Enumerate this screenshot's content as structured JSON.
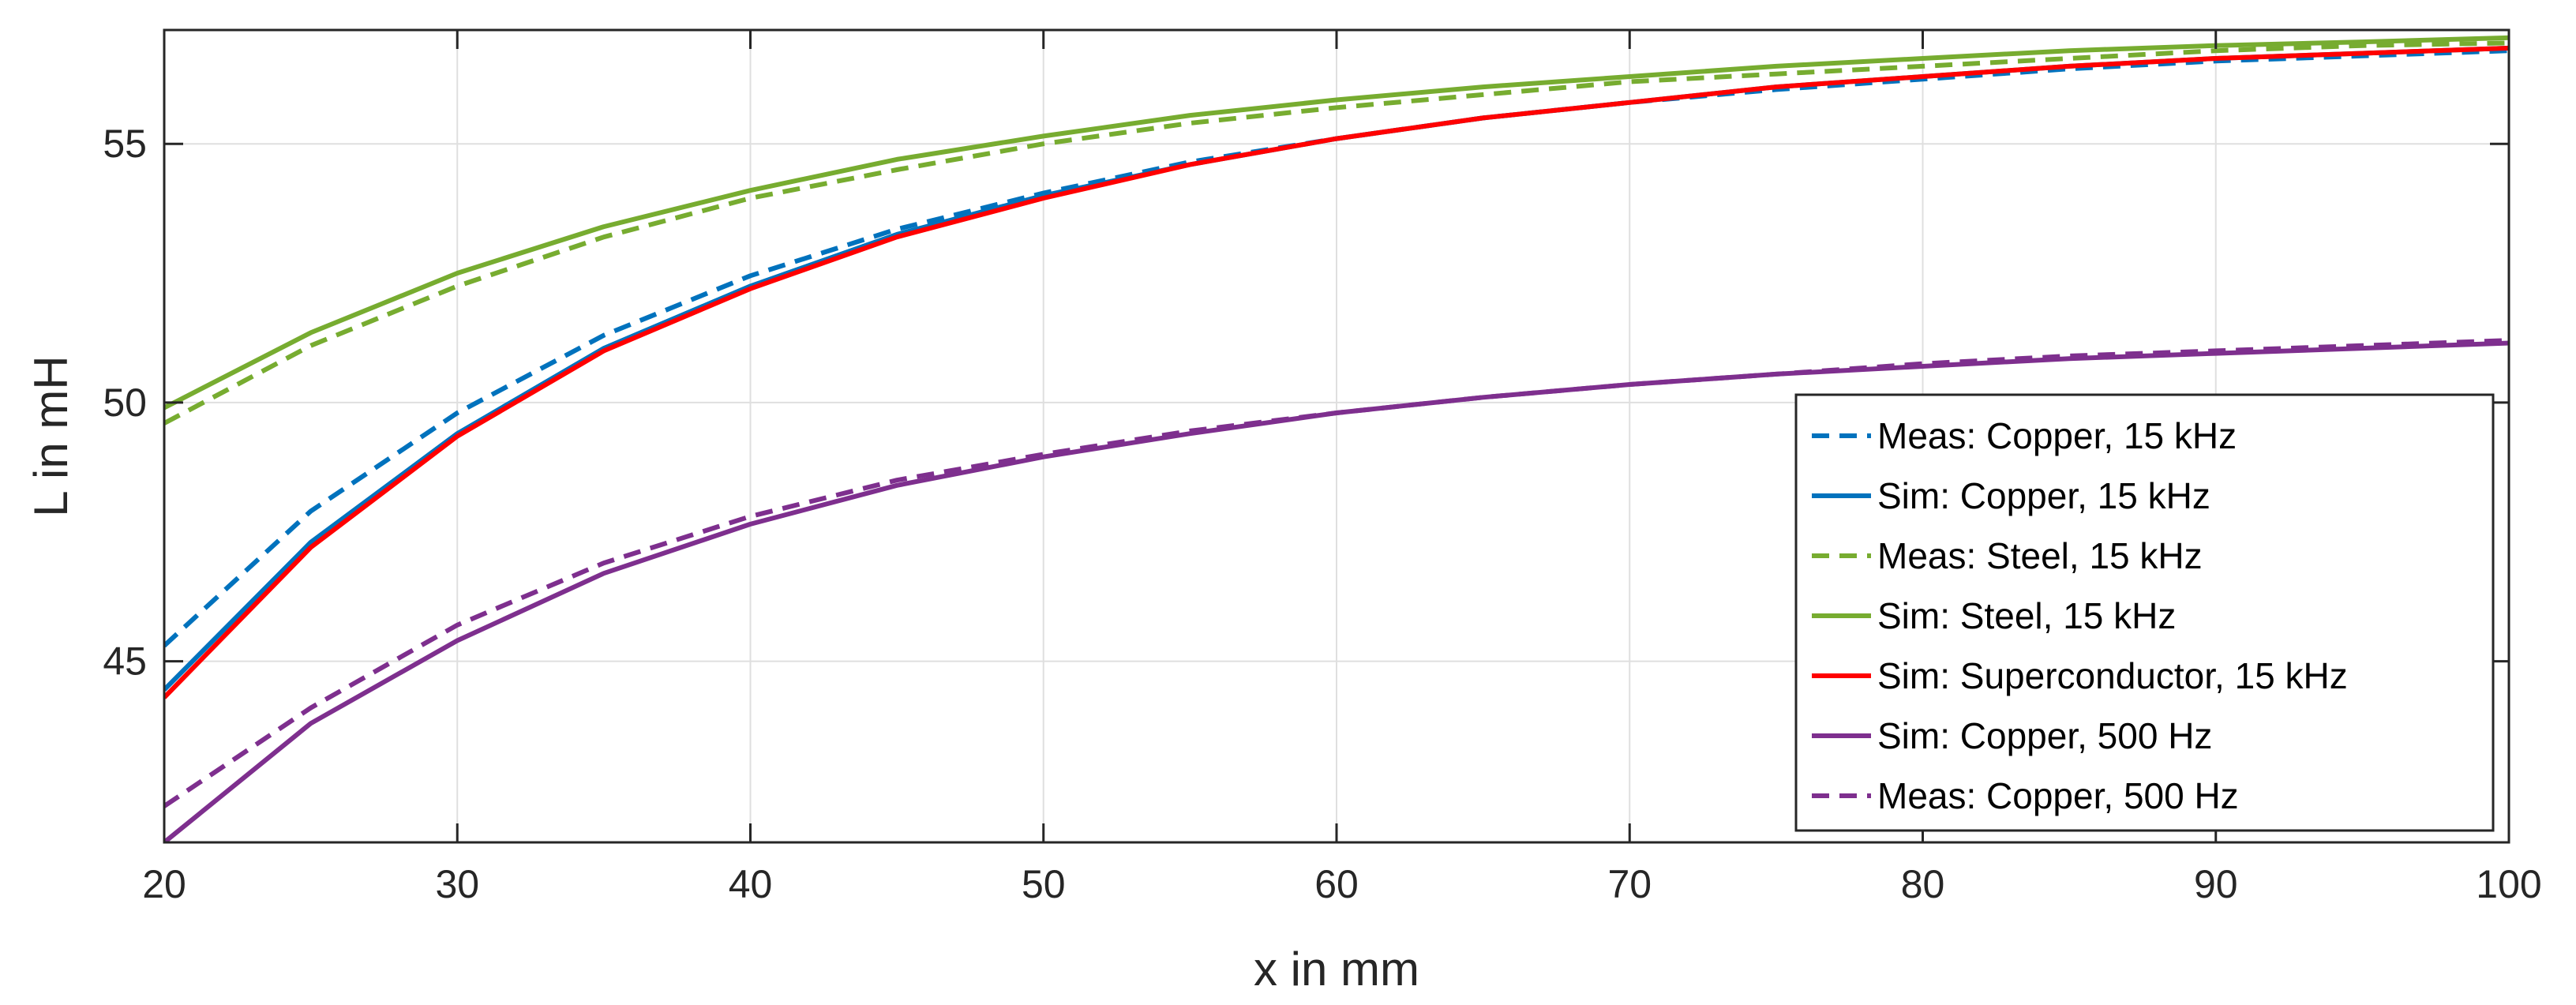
{
  "chart_data": {
    "type": "line",
    "xlabel": "x in mm",
    "ylabel": "L in mH",
    "xlim": [
      20,
      100
    ],
    "ylim": [
      41.5,
      57.2
    ],
    "x_ticks": [
      20,
      30,
      40,
      50,
      60,
      70,
      80,
      90,
      100
    ],
    "y_ticks": [
      45,
      50,
      55
    ],
    "grid": true,
    "legend_position": "bottom-right",
    "x": [
      20,
      25,
      30,
      35,
      40,
      45,
      50,
      55,
      60,
      65,
      70,
      75,
      80,
      85,
      90,
      95,
      100
    ],
    "series": [
      {
        "name": "Meas: Copper, 15 kHz",
        "color": "#0072BD",
        "dash": "dashed",
        "values": [
          45.3,
          47.9,
          49.8,
          51.3,
          52.45,
          53.35,
          54.05,
          54.65,
          55.1,
          55.5,
          55.8,
          56.05,
          56.25,
          56.45,
          56.6,
          56.7,
          56.8
        ]
      },
      {
        "name": "Sim: Copper, 15 kHz",
        "color": "#0072BD",
        "dash": "solid",
        "values": [
          44.45,
          47.3,
          49.4,
          51.05,
          52.25,
          53.25,
          54.0,
          54.6,
          55.1,
          55.5,
          55.8,
          56.1,
          56.3,
          56.5,
          56.65,
          56.75,
          56.85
        ]
      },
      {
        "name": "Meas: Steel, 15 kHz",
        "color": "#77AC30",
        "dash": "dashed",
        "values": [
          49.6,
          51.1,
          52.25,
          53.2,
          53.95,
          54.5,
          55.0,
          55.4,
          55.7,
          55.95,
          56.2,
          56.35,
          56.5,
          56.65,
          56.8,
          56.9,
          56.95
        ]
      },
      {
        "name": "Sim: Steel, 15 kHz",
        "color": "#77AC30",
        "dash": "solid",
        "values": [
          49.9,
          51.35,
          52.5,
          53.4,
          54.1,
          54.7,
          55.15,
          55.55,
          55.85,
          56.1,
          56.3,
          56.5,
          56.65,
          56.8,
          56.9,
          56.97,
          57.05
        ]
      },
      {
        "name": "Sim: Superconductor, 15 kHz",
        "color": "#FF0000",
        "dash": "solid",
        "values": [
          44.3,
          47.2,
          49.35,
          51.0,
          52.2,
          53.2,
          53.95,
          54.6,
          55.1,
          55.5,
          55.8,
          56.1,
          56.3,
          56.5,
          56.65,
          56.75,
          56.85
        ]
      },
      {
        "name": "Sim: Copper, 500 Hz",
        "color": "#7E2F8E",
        "dash": "solid",
        "values": [
          41.5,
          43.8,
          45.4,
          46.7,
          47.65,
          48.4,
          48.95,
          49.4,
          49.8,
          50.1,
          50.35,
          50.55,
          50.7,
          50.85,
          50.95,
          51.05,
          51.15
        ]
      },
      {
        "name": "Meas: Copper, 500 Hz",
        "color": "#7E2F8E",
        "dash": "dashed",
        "values": [
          42.2,
          44.1,
          45.7,
          46.9,
          47.8,
          48.5,
          49.0,
          49.45,
          49.8,
          50.1,
          50.35,
          50.55,
          50.75,
          50.9,
          51.0,
          51.1,
          51.2
        ]
      }
    ]
  }
}
